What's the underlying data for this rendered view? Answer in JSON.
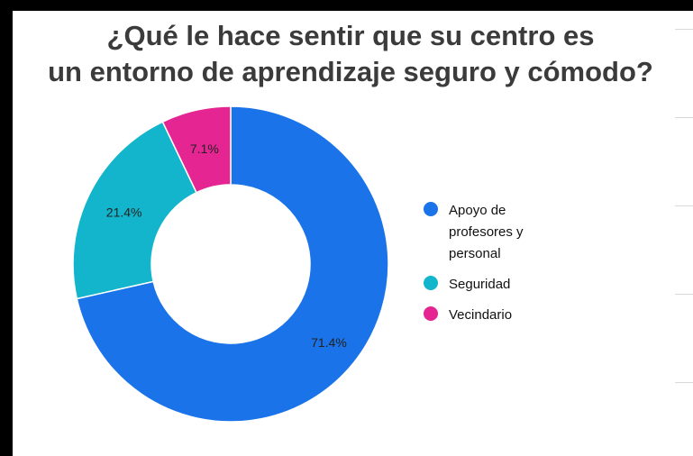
{
  "chart_data": {
    "type": "pie",
    "title_lines": [
      "¿Qué le hace sentir que su centro es",
      "un entorno de aprendizaje seguro y cómodo?"
    ],
    "donut": true,
    "categories": [
      "Apoyo de profesores y personal",
      "Seguridad",
      "Vecindario"
    ],
    "values": [
      71.4,
      21.4,
      7.1
    ],
    "data_labels": [
      "71.4%",
      "21.4%",
      "7.1%"
    ],
    "colors": [
      "#1a73e8",
      "#12b5cb",
      "#e52592"
    ],
    "legend_position": "right"
  },
  "legend": {
    "items": [
      {
        "label": "Apoyo de profesores y personal",
        "color": "#1a73e8"
      },
      {
        "label": "Seguridad",
        "color": "#12b5cb"
      },
      {
        "label": "Vecindario",
        "color": "#e52592"
      }
    ]
  }
}
